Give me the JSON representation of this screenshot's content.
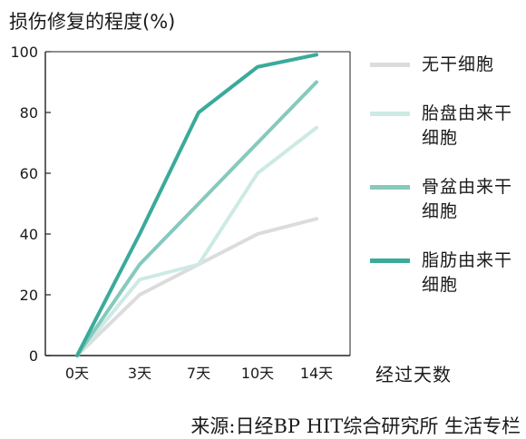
{
  "chart_data": {
    "type": "line",
    "ylabel": "损伤修复的程度(%)",
    "xlabel": "经过天数",
    "categories": [
      "0天",
      "3天",
      "7天",
      "10天",
      "14天"
    ],
    "yticks": [
      0,
      20,
      40,
      60,
      80,
      100
    ],
    "ylim": [
      0,
      100
    ],
    "grid": false,
    "legend_position": "right",
    "series": [
      {
        "name": "无干细胞",
        "color": "#dcdcdc",
        "values": [
          0,
          20,
          30,
          40,
          45
        ]
      },
      {
        "name": "胎盘由来干细胞",
        "color": "#cdeae5",
        "values": [
          0,
          25,
          30,
          60,
          75
        ]
      },
      {
        "name": "骨盆由来干细胞",
        "color": "#86c9bd",
        "values": [
          0,
          30,
          50,
          70,
          90
        ]
      },
      {
        "name": "脂肪由来干细胞",
        "color": "#3aaa9b",
        "values": [
          0,
          40,
          80,
          95,
          99
        ]
      }
    ]
  },
  "source": "来源:日经BP HIT综合研究所 生活专栏"
}
